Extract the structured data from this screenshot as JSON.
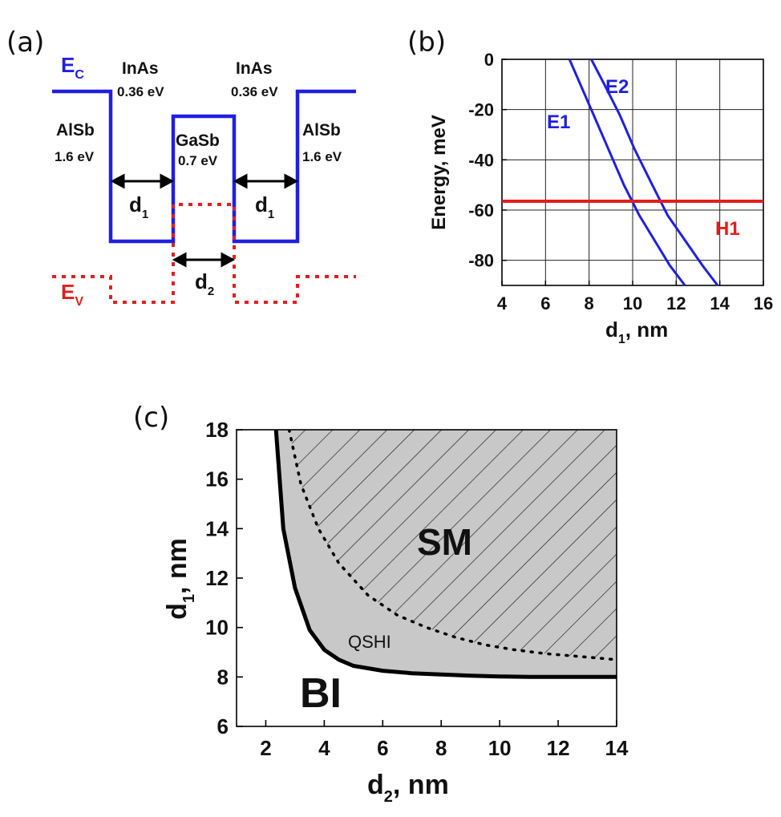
{
  "panels": {
    "a": "(a)",
    "b": "(b)",
    "c": "(c)"
  },
  "diagram_a": {
    "ec_label": "E",
    "ec_sub": "C",
    "ev_label": "E",
    "ev_sub": "V",
    "left_barrier": {
      "material": "AlSb",
      "gap": "1.6 eV"
    },
    "left_well": {
      "material": "InAs",
      "gap": "0.36 eV"
    },
    "center": {
      "material": "GaSb",
      "gap": "0.7 eV"
    },
    "right_well": {
      "material": "InAs",
      "gap": "0.36 eV"
    },
    "right_barrier": {
      "material": "AlSb",
      "gap": "1.6 eV"
    },
    "d1_label": "d",
    "d1_sub": "1",
    "d2_label": "d",
    "d2_sub": "2",
    "colors": {
      "conduction": "#1f1fe0",
      "valence": "#e01f1f"
    }
  },
  "chart_data": [
    {
      "type": "line",
      "panel": "b",
      "xlabel": "d",
      "xlabel_sub": "1",
      "xlabel_unit": ", nm",
      "ylabel": "Energy, meV",
      "xlim": [
        4,
        16
      ],
      "ylim": [
        -90,
        0
      ],
      "xticks": [
        4,
        6,
        8,
        10,
        12,
        14,
        16
      ],
      "yticks": [
        0,
        -20,
        -40,
        -60,
        -80
      ],
      "series": [
        {
          "name": "E1",
          "color": "#1f1fe0",
          "x": [
            7.1,
            7.6,
            8.2,
            8.9,
            9.6,
            10.3,
            11.0,
            11.7,
            12.4
          ],
          "y": [
            0,
            -10,
            -22,
            -36,
            -50,
            -62,
            -72,
            -82,
            -90
          ]
        },
        {
          "name": "E2",
          "color": "#1f1fe0",
          "x": [
            8.1,
            8.7,
            9.4,
            10.1,
            10.9,
            11.6,
            12.4,
            13.2,
            13.9
          ],
          "y": [
            0,
            -10,
            -22,
            -36,
            -50,
            -62,
            -72,
            -82,
            -90
          ]
        },
        {
          "name": "H1",
          "color": "#e01f1f",
          "x": [
            4,
            16
          ],
          "y": [
            -56.5,
            -56.5
          ]
        }
      ]
    },
    {
      "type": "line",
      "panel": "c",
      "xlabel": "d",
      "xlabel_sub": "2",
      "xlabel_unit": ", nm",
      "ylabel": "d",
      "ylabel_sub": "1",
      "ylabel_unit": ", nm",
      "xlim": [
        1,
        14
      ],
      "ylim": [
        6,
        18
      ],
      "xticks": [
        2,
        4,
        6,
        8,
        10,
        12,
        14
      ],
      "yticks": [
        6,
        8,
        10,
        12,
        14,
        16,
        18
      ],
      "regions": {
        "bi": "BI",
        "qshi": "QSHI",
        "sm": "SM"
      },
      "series": [
        {
          "name": "BI-QSHI boundary",
          "style": "solid",
          "x": [
            2.35,
            2.6,
            3.0,
            3.5,
            4.0,
            4.5,
            5.0,
            6.0,
            7.0,
            8.0,
            9.0,
            10.0,
            11.0,
            12.0,
            13.0,
            14.0
          ],
          "y": [
            18.0,
            14.0,
            11.6,
            9.9,
            9.1,
            8.7,
            8.45,
            8.25,
            8.15,
            8.1,
            8.05,
            8.02,
            8.0,
            8.0,
            8.0,
            8.0
          ]
        },
        {
          "name": "QSHI-SM boundary",
          "style": "dotted",
          "x": [
            2.8,
            3.2,
            3.8,
            4.5,
            5.5,
            6.5,
            7.5,
            8.5,
            9.5,
            10.5,
            11.5,
            12.5,
            13.5,
            14.0
          ],
          "y": [
            18.0,
            15.8,
            14.0,
            12.6,
            11.3,
            10.5,
            10.0,
            9.6,
            9.3,
            9.1,
            8.95,
            8.85,
            8.75,
            8.7
          ]
        }
      ],
      "colors": {
        "qshi_fill": "#c8c8c8",
        "line": "#000000"
      }
    }
  ]
}
